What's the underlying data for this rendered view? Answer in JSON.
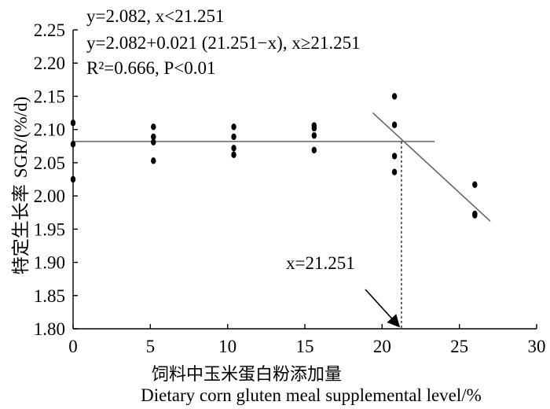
{
  "chart_data": {
    "type": "scatter",
    "xlabel_cn": "饲料中玉米蛋白粉添加量",
    "xlabel_en": "Dietary corn gluten meal supplemental level/%",
    "ylabel_cn": "特定生长率",
    "ylabel_en": "SGR/(%/d)",
    "xlim": [
      0,
      30
    ],
    "ylim": [
      1.8,
      2.25
    ],
    "xticks": [
      "0",
      "5",
      "10",
      "15",
      "20",
      "25",
      "30"
    ],
    "yticks": [
      "1.80",
      "1.85",
      "1.90",
      "1.95",
      "2.00",
      "2.05",
      "2.10",
      "2.15",
      "2.20",
      "2.25"
    ],
    "grid": false,
    "points": [
      {
        "x": 0,
        "y": 2.11
      },
      {
        "x": 0,
        "y": 2.078
      },
      {
        "x": 0,
        "y": 2.025
      },
      {
        "x": 5.2,
        "y": 2.104
      },
      {
        "x": 5.2,
        "y": 2.089
      },
      {
        "x": 5.2,
        "y": 2.081
      },
      {
        "x": 5.2,
        "y": 2.053
      },
      {
        "x": 10.4,
        "y": 2.104
      },
      {
        "x": 10.4,
        "y": 2.089
      },
      {
        "x": 10.4,
        "y": 2.072
      },
      {
        "x": 10.4,
        "y": 2.062
      },
      {
        "x": 15.6,
        "y": 2.106
      },
      {
        "x": 15.6,
        "y": 2.102
      },
      {
        "x": 15.6,
        "y": 2.091
      },
      {
        "x": 15.6,
        "y": 2.069
      },
      {
        "x": 20.8,
        "y": 2.15
      },
      {
        "x": 20.8,
        "y": 2.107
      },
      {
        "x": 20.8,
        "y": 2.06
      },
      {
        "x": 20.8,
        "y": 2.036
      },
      {
        "x": 26.0,
        "y": 2.017
      },
      {
        "x": 26.0,
        "y": 1.973
      },
      {
        "x": 26.0,
        "y": 1.971
      }
    ],
    "fit": {
      "plateau": {
        "y": 2.082,
        "x_from": 0,
        "x_to": 23.4
      },
      "decline": {
        "x_from": 19.4,
        "y_from": 2.125,
        "x_to": 27.0,
        "y_to": 1.962
      },
      "breakpoint_x": 21.251,
      "breakpoint_y": 2.082
    },
    "equations": {
      "line1": "y=2.082, x<21.251",
      "line2": "y=2.082+0.021 (21.251−x), x≥21.251",
      "line3": "R²=0.666, P<0.01"
    },
    "annotation": {
      "label": "x=21.251",
      "text_x": 21.251,
      "arrow_to_y": 1.8
    },
    "colors": {
      "axis": "#000000",
      "points": "#000000",
      "fit_line": "#666666",
      "text": "#000000"
    }
  }
}
